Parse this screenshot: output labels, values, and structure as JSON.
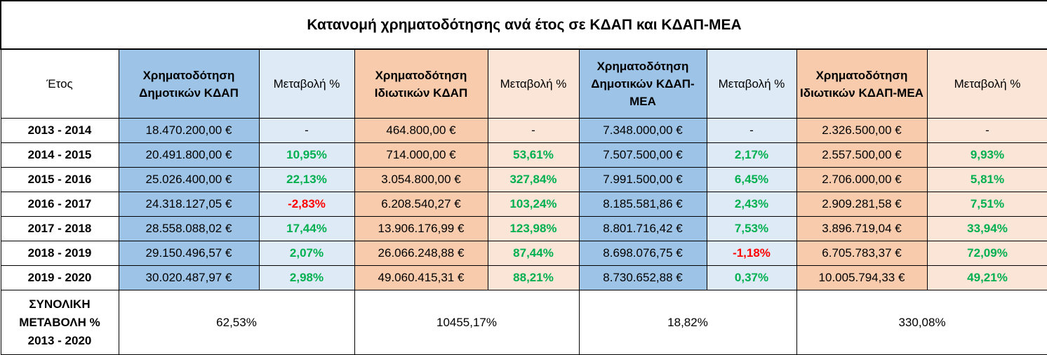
{
  "title": "Κατανομή χρηματοδότησης ανά έτος σε ΚΔΑΠ και ΚΔΑΠ-ΜΕΑ",
  "headers": {
    "year": "Έτος",
    "public_kdap": "Χρηματοδότηση Δημοτικών ΚΔΑΠ",
    "change1": "Μεταβολή %",
    "private_kdap": "Χρηματοδότηση Ιδιωτικών ΚΔΑΠ",
    "change2": "Μεταβολή %",
    "public_mea": "Χρηματοδότηση Δημοτικών ΚΔΑΠ-ΜΕΑ",
    "change3": "Μεταβολή %",
    "private_mea": "Χρηματοδότηση Ιδιωτικών ΚΔΑΠ-ΜΕΑ",
    "change4": "Μεταβολή %"
  },
  "rows": [
    {
      "year": "2013 - 2014",
      "v1": "18.470.200,00 €",
      "c1": "-",
      "v2": "464.800,00 €",
      "c2": "-",
      "v3": "7.348.000,00 €",
      "c3": "-",
      "v4": "2.326.500,00 €",
      "c4": "-"
    },
    {
      "year": "2014 - 2015",
      "v1": "20.491.800,00 €",
      "c1": "10,95%",
      "v2": "714.000,00 €",
      "c2": "53,61%",
      "v3": "7.507.500,00 €",
      "c3": "2,17%",
      "v4": "2.557.500,00 €",
      "c4": "9,93%"
    },
    {
      "year": "2015 - 2016",
      "v1": "25.026.400,00 €",
      "c1": "22,13%",
      "v2": "3.054.800,00 €",
      "c2": "327,84%",
      "v3": "7.991.500,00 €",
      "c3": "6,45%",
      "v4": "2.706.000,00 €",
      "c4": "5,81%"
    },
    {
      "year": "2016 - 2017",
      "v1": "24.318.127,05 €",
      "c1": "-2,83%",
      "v2": "6.208.540,27 €",
      "c2": "103,24%",
      "v3": "8.185.581,86 €",
      "c3": "2,43%",
      "v4": "2.909.281,58 €",
      "c4": "7,51%"
    },
    {
      "year": "2017 - 2018",
      "v1": "28.558.088,02 €",
      "c1": "17,44%",
      "v2": "13.906.176,99 €",
      "c2": "123,98%",
      "v3": "8.801.716,42 €",
      "c3": "7,53%",
      "v4": "3.896.719,04 €",
      "c4": "33,94%"
    },
    {
      "year": "2018 - 2019",
      "v1": "29.150.496,57 €",
      "c1": "2,07%",
      "v2": "26.066.248,88 €",
      "c2": "87,44%",
      "v3": "8.698.076,75 €",
      "c3": "-1,18%",
      "v4": "6.705.783,37 €",
      "c4": "72,09%"
    },
    {
      "year": "2019 - 2020",
      "v1": "30.020.487,97 €",
      "c1": "2,98%",
      "v2": "49.060.415,31 €",
      "c2": "88,21%",
      "v3": "8.730.652,88 €",
      "c3": "0,37%",
      "v4": "10.005.794,33 €",
      "c4": "49,21%"
    }
  ],
  "total": {
    "label_line1": "ΣΥΝΟΛΙΚΗ",
    "label_line2": "ΜΕΤΑΒΟΛΗ %",
    "label_line3": "2013 - 2020",
    "t1": "62,53%",
    "t2": "10455,17%",
    "t3": "18,82%",
    "t4": "330,08%"
  },
  "colors": {
    "blue_header": "#9dc3e6",
    "blue_light": "#deebf7",
    "orange_header": "#f8cbad",
    "orange_light": "#fbe5d6",
    "positive": "#00b050",
    "negative": "#ff0000"
  }
}
